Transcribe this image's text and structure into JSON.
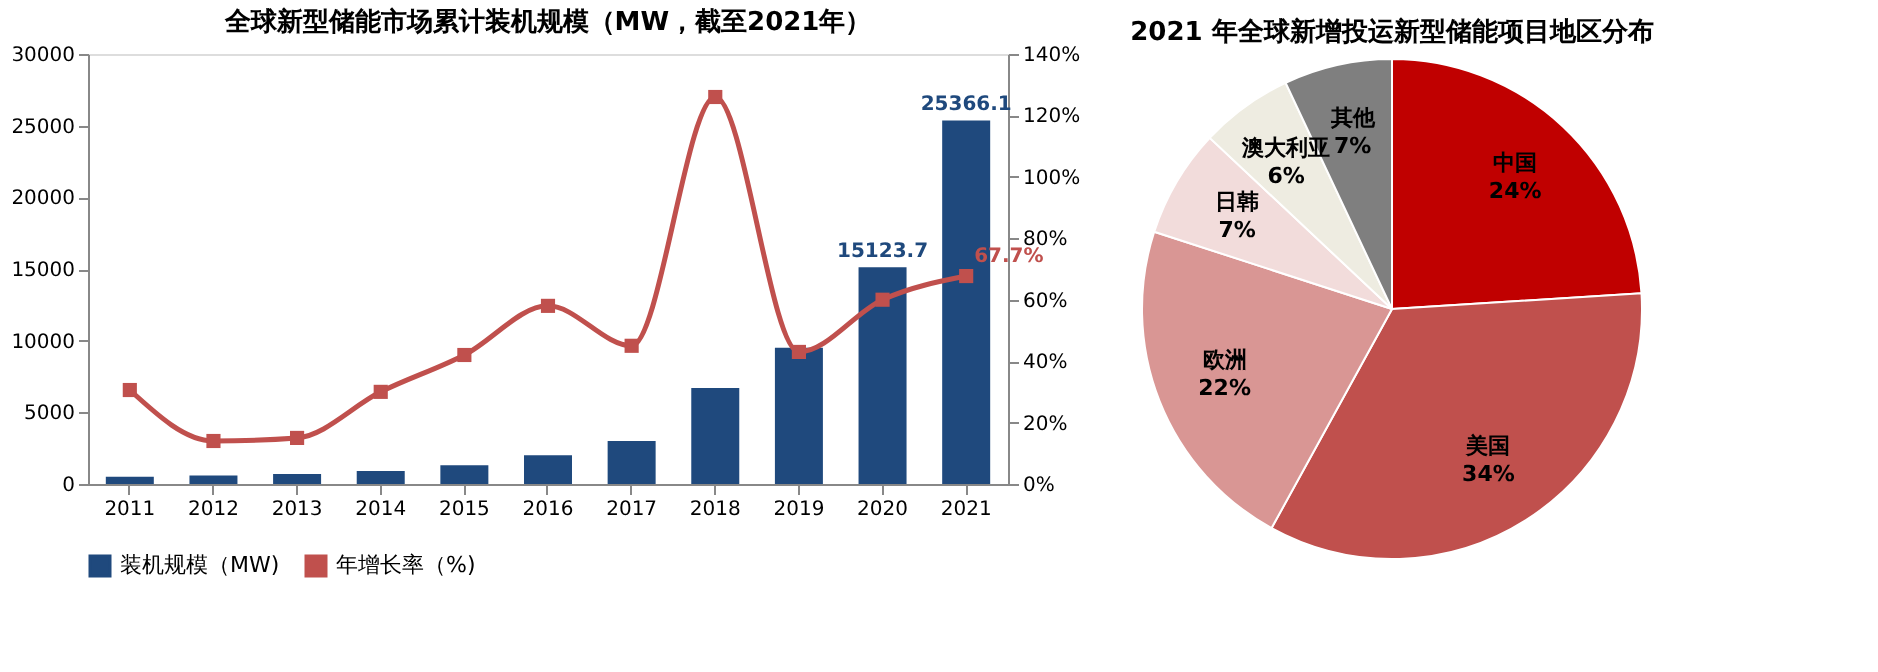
{
  "chart_data": [
    {
      "type": "bar",
      "title": "全球新型储能市场累计装机规模（MW，截至2021年）",
      "categories": [
        "2011",
        "2012",
        "2013",
        "2014",
        "2015",
        "2016",
        "2017",
        "2018",
        "2019",
        "2020",
        "2021"
      ],
      "series": [
        {
          "name": "装机规模（MW)",
          "type": "bar",
          "color": "#1f497d",
          "values": [
            500,
            600,
            700,
            900,
            1300,
            2000,
            3000,
            6700,
            9500,
            15123.7,
            25366.1
          ],
          "value_labels": [
            null,
            null,
            null,
            null,
            null,
            null,
            null,
            null,
            null,
            "15123.7",
            "25366.1"
          ]
        },
        {
          "name": "年增长率（%)",
          "type": "line",
          "axis": "y2",
          "color": "#c0504d",
          "values": [
            30.6,
            14,
            15,
            30,
            42,
            58,
            45,
            126,
            43,
            60,
            67.7
          ],
          "value_labels": [
            null,
            null,
            null,
            null,
            null,
            null,
            null,
            null,
            null,
            null,
            "67.7%"
          ]
        }
      ],
      "ylim": [
        0,
        30000
      ],
      "yticks": [
        0,
        5000,
        10000,
        15000,
        20000,
        25000,
        30000
      ],
      "y2lim": [
        0,
        140
      ],
      "y2ticks": [
        {
          "value": 0,
          "label": "0%"
        },
        {
          "value": 20,
          "label": "20%"
        },
        {
          "value": 40,
          "label": "40%"
        },
        {
          "value": 60,
          "label": "60%"
        },
        {
          "value": 80,
          "label": "80%"
        },
        {
          "value": 100,
          "label": "100%"
        },
        {
          "value": 120,
          "label": "120%"
        },
        {
          "value": 140,
          "label": "140%"
        }
      ],
      "grid": false,
      "legend": "bottom",
      "marker": "square"
    },
    {
      "type": "pie",
      "title": "2021 年全球新增投运新型储能项目地区分布",
      "categories": [
        "中国",
        "美国",
        "欧洲",
        "日韩",
        "澳大利亚",
        "其他"
      ],
      "values": [
        24,
        34,
        22,
        7,
        6,
        7
      ],
      "value_labels": [
        "24%",
        "34%",
        "22%",
        "7%",
        "6%",
        "7%"
      ],
      "colors": [
        "#c00000",
        "#c0504d",
        "#d99694",
        "#f2dcdb",
        "#eeece1",
        "#7f7f7f"
      ],
      "legend": false
    }
  ]
}
